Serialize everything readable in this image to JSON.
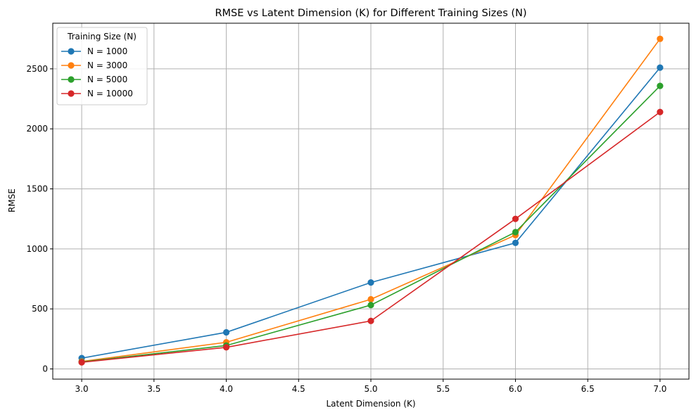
{
  "chart_data": {
    "type": "line",
    "title": "RMSE vs Latent Dimension (K) for Different Training Sizes (N)",
    "xlabel": "Latent Dimension (K)",
    "ylabel": "RMSE",
    "x": [
      3.0,
      4.0,
      5.0,
      6.0,
      7.0
    ],
    "xlim": [
      2.8,
      7.2
    ],
    "ylim": [
      -85,
      2880
    ],
    "xticks": [
      3.0,
      3.5,
      4.0,
      4.5,
      5.0,
      5.5,
      6.0,
      6.5,
      7.0
    ],
    "xtick_labels": [
      "3.0",
      "3.5",
      "4.0",
      "4.5",
      "5.0",
      "5.5",
      "6.0",
      "6.5",
      "7.0"
    ],
    "yticks": [
      0,
      500,
      1000,
      1500,
      2000,
      2500
    ],
    "ytick_labels": [
      "0",
      "500",
      "1000",
      "1500",
      "2000",
      "2500"
    ],
    "grid": true,
    "legend_title": "Training Size (N)",
    "legend_position": "top-left",
    "series": [
      {
        "name": "N = 1000",
        "color": "#1f77b4",
        "values": [
          90,
          305,
          720,
          1050,
          2510
        ]
      },
      {
        "name": "N = 3000",
        "color": "#ff7f0e",
        "values": [
          62,
          222,
          580,
          1115,
          2750
        ]
      },
      {
        "name": "N = 5000",
        "color": "#2ca02c",
        "values": [
          58,
          195,
          532,
          1140,
          2358
        ]
      },
      {
        "name": "N = 10000",
        "color": "#d62728",
        "values": [
          55,
          180,
          400,
          1250,
          2140
        ]
      }
    ]
  }
}
